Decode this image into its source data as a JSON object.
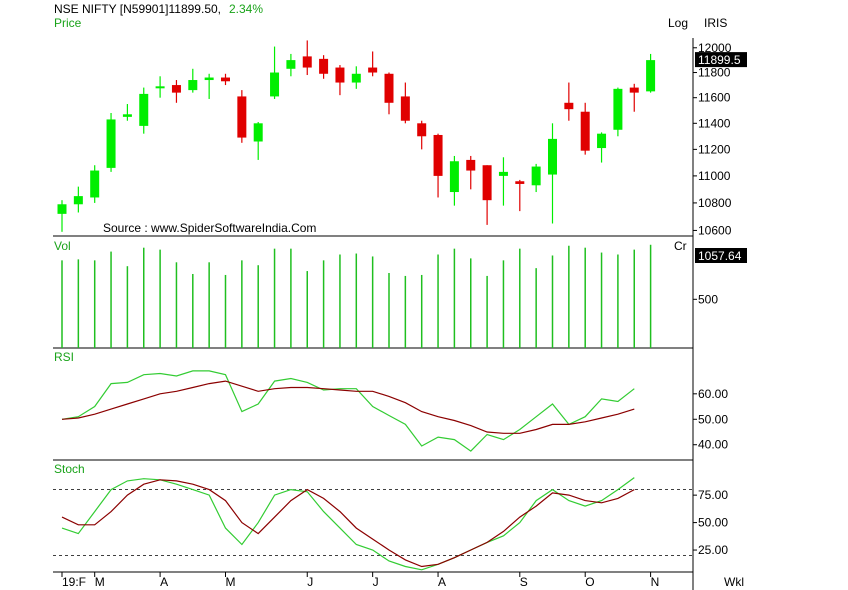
{
  "header": {
    "symbol": "NSE NIFTY [N59901]",
    "last_price": "11899.50,",
    "change_pct": "2.34%",
    "log_label": "Log",
    "tool_label": "IRIS",
    "source": "Source : www.SpiderSoftwareIndia.Com",
    "period_label": "Wkl"
  },
  "colors": {
    "up": "#00ee00",
    "down": "#e00000",
    "fast_line": "#33cc33",
    "slow_line": "#8b0000",
    "volume": "#1fbf1f",
    "label_green": "#1aa31a",
    "box_bg": "#000000"
  },
  "chart_data": [
    {
      "type": "candlestick",
      "name": "Price",
      "title": "Price",
      "scale": "log",
      "ylim": [
        10560,
        12080
      ],
      "yticks": [
        "12000",
        "11800",
        "11600",
        "11400",
        "11200",
        "11000",
        "10800",
        "10600"
      ],
      "last_value_label": "11899.5",
      "x_labels": [
        "19:F",
        "M",
        "A",
        "M",
        "J",
        "J",
        "A",
        "S",
        "O",
        "N"
      ],
      "x_label_index": [
        0,
        2,
        6,
        10,
        15,
        19,
        23,
        28,
        32,
        36
      ],
      "candles": [
        {
          "o": 10720,
          "h": 10820,
          "l": 10590,
          "c": 10790
        },
        {
          "o": 10790,
          "h": 10920,
          "l": 10730,
          "c": 10850
        },
        {
          "o": 10840,
          "h": 11080,
          "l": 10800,
          "c": 11040
        },
        {
          "o": 11060,
          "h": 11480,
          "l": 11030,
          "c": 11430
        },
        {
          "o": 11450,
          "h": 11550,
          "l": 11420,
          "c": 11470
        },
        {
          "o": 11380,
          "h": 11680,
          "l": 11320,
          "c": 11630
        },
        {
          "o": 11680,
          "h": 11770,
          "l": 11600,
          "c": 11690
        },
        {
          "o": 11700,
          "h": 11740,
          "l": 11560,
          "c": 11640
        },
        {
          "o": 11660,
          "h": 11830,
          "l": 11640,
          "c": 11740
        },
        {
          "o": 11740,
          "h": 11790,
          "l": 11590,
          "c": 11760
        },
        {
          "o": 11760,
          "h": 11790,
          "l": 11700,
          "c": 11730
        },
        {
          "o": 11610,
          "h": 11660,
          "l": 11250,
          "c": 11290
        },
        {
          "o": 11260,
          "h": 11410,
          "l": 11120,
          "c": 11400
        },
        {
          "o": 11610,
          "h": 12010,
          "l": 11590,
          "c": 11800
        },
        {
          "o": 11830,
          "h": 11950,
          "l": 11770,
          "c": 11900
        },
        {
          "o": 11930,
          "h": 12060,
          "l": 11780,
          "c": 11840
        },
        {
          "o": 11910,
          "h": 11940,
          "l": 11750,
          "c": 11790
        },
        {
          "o": 11840,
          "h": 11860,
          "l": 11620,
          "c": 11720
        },
        {
          "o": 11720,
          "h": 11850,
          "l": 11670,
          "c": 11790
        },
        {
          "o": 11840,
          "h": 11970,
          "l": 11770,
          "c": 11800
        },
        {
          "o": 11790,
          "h": 11800,
          "l": 11470,
          "c": 11560
        },
        {
          "o": 11610,
          "h": 11720,
          "l": 11400,
          "c": 11420
        },
        {
          "o": 11400,
          "h": 11420,
          "l": 11200,
          "c": 11300
        },
        {
          "o": 11310,
          "h": 11320,
          "l": 10840,
          "c": 11000
        },
        {
          "o": 10880,
          "h": 11150,
          "l": 10780,
          "c": 11110
        },
        {
          "o": 11120,
          "h": 11150,
          "l": 10900,
          "c": 11040
        },
        {
          "o": 11080,
          "h": 11080,
          "l": 10640,
          "c": 10820
        },
        {
          "o": 11000,
          "h": 11140,
          "l": 10780,
          "c": 11030
        },
        {
          "o": 10960,
          "h": 10970,
          "l": 10740,
          "c": 10940
        },
        {
          "o": 10930,
          "h": 11090,
          "l": 10880,
          "c": 11070
        },
        {
          "o": 11010,
          "h": 11400,
          "l": 10650,
          "c": 11280
        },
        {
          "o": 11560,
          "h": 11720,
          "l": 11420,
          "c": 11510
        },
        {
          "o": 11490,
          "h": 11560,
          "l": 11160,
          "c": 11190
        },
        {
          "o": 11210,
          "h": 11330,
          "l": 11100,
          "c": 11320
        },
        {
          "o": 11350,
          "h": 11680,
          "l": 11300,
          "c": 11670
        },
        {
          "o": 11680,
          "h": 11710,
          "l": 11490,
          "c": 11640
        },
        {
          "o": 11650,
          "h": 11950,
          "l": 11640,
          "c": 11900
        }
      ]
    },
    {
      "type": "bar",
      "name": "Vol",
      "title": "Vol",
      "unit_label": "Cr",
      "ylim": [
        0,
        1150
      ],
      "yticks": [
        "500"
      ],
      "ytick_values": [
        500
      ],
      "last_value_label": "1057.64",
      "values": [
        900,
        910,
        900,
        990,
        840,
        1030,
        1010,
        880,
        760,
        880,
        750,
        900,
        850,
        1020,
        1020,
        790,
        900,
        960,
        970,
        940,
        770,
        740,
        750,
        960,
        1020,
        920,
        740,
        900,
        1020,
        820,
        950,
        1050,
        1030,
        980,
        960,
        1010,
        1060
      ]
    },
    {
      "type": "line",
      "name": "RSI",
      "title": "RSI",
      "ylim": [
        34,
        78
      ],
      "yticks": [
        "60.00",
        "50.00",
        "40.00"
      ],
      "ytick_values": [
        60,
        50,
        40
      ],
      "series": [
        {
          "values": [
            50,
            51,
            55,
            64,
            64.5,
            67.5,
            68,
            67,
            69,
            69,
            67.5,
            53,
            56,
            65,
            66,
            64.5,
            61.5,
            62,
            62,
            55,
            51.5,
            48,
            39.5,
            43,
            42,
            37.5,
            44,
            42,
            46,
            51,
            56,
            48,
            51,
            58,
            57,
            62
          ]
        },
        {
          "values": [
            50,
            50.5,
            52,
            54,
            56,
            58,
            60,
            61,
            62.5,
            64,
            65,
            63,
            61,
            62,
            62.5,
            62.5,
            62,
            61.5,
            61,
            61,
            59,
            56.5,
            53,
            51,
            49.5,
            47.5,
            45,
            44.5,
            44.5,
            46,
            48,
            48,
            49,
            50.5,
            52,
            54
          ]
        }
      ]
    },
    {
      "type": "line",
      "name": "Stoch",
      "title": "Stoch",
      "ylim": [
        5,
        107
      ],
      "yticks": [
        "75.00",
        "50.00",
        "25.00"
      ],
      "ytick_values": [
        75,
        50,
        25
      ],
      "reference_lines": [
        80,
        20
      ],
      "series": [
        {
          "values": [
            45,
            40,
            60,
            80,
            88,
            90,
            89,
            85,
            80,
            75,
            45,
            30,
            50,
            75,
            80,
            78,
            60,
            45,
            30,
            25,
            15,
            10,
            7,
            12,
            18,
            25,
            32,
            38,
            50,
            70,
            80,
            70,
            65,
            70,
            80,
            91
          ]
        },
        {
          "values": [
            55,
            48,
            48,
            60,
            75,
            85,
            89,
            88,
            85,
            80,
            70,
            50,
            40,
            55,
            70,
            80,
            72,
            60,
            45,
            35,
            25,
            16,
            10,
            12,
            18,
            25,
            32,
            42,
            55,
            65,
            77,
            75,
            70,
            68,
            72,
            80
          ]
        }
      ]
    }
  ]
}
